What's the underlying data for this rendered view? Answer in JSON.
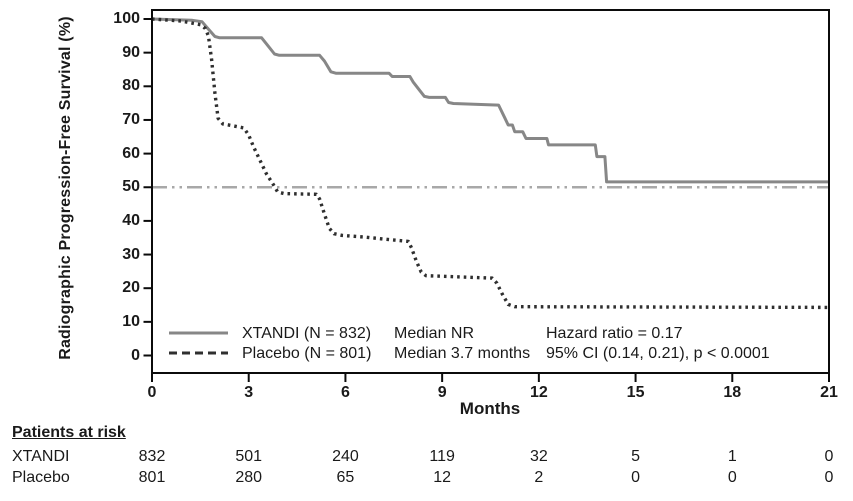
{
  "chart_data": {
    "type": "line",
    "subtype": "kaplan-meier-step",
    "title": "",
    "xlabel": "Months",
    "ylabel": "Radiographic Progression-Free Survival (%)",
    "xlim": [
      0,
      21
    ],
    "ylim": [
      0,
      100
    ],
    "xticks": [
      0,
      3,
      6,
      9,
      12,
      15,
      18,
      21
    ],
    "yticks": [
      0,
      10,
      20,
      30,
      40,
      50,
      60,
      70,
      80,
      90,
      100
    ],
    "grid": false,
    "reference_line": {
      "y": 50,
      "style": "dash-dot",
      "color": "#a8a8a8"
    },
    "series": [
      {
        "name": "XTANDI",
        "n": 832,
        "median": "NR",
        "color": "#878787",
        "line_style": "solid",
        "points": [
          [
            0,
            100
          ],
          [
            1.25,
            99.6
          ],
          [
            1.55,
            99.2
          ],
          [
            1.75,
            97.0
          ],
          [
            1.95,
            94.8
          ],
          [
            2.1,
            94.4
          ],
          [
            3.4,
            94.4
          ],
          [
            3.6,
            92.0
          ],
          [
            3.8,
            89.6
          ],
          [
            3.95,
            89.2
          ],
          [
            5.2,
            89.2
          ],
          [
            5.35,
            87.5
          ],
          [
            5.55,
            84.3
          ],
          [
            5.7,
            83.9
          ],
          [
            7.35,
            83.9
          ],
          [
            7.45,
            82.9
          ],
          [
            8.0,
            82.9
          ],
          [
            8.1,
            81.3
          ],
          [
            8.3,
            78.8
          ],
          [
            8.45,
            77.0
          ],
          [
            8.6,
            76.7
          ],
          [
            9.1,
            76.7
          ],
          [
            9.2,
            75.2
          ],
          [
            9.35,
            74.9
          ],
          [
            10.75,
            74.4
          ],
          [
            10.95,
            70.5
          ],
          [
            11.05,
            68.5
          ],
          [
            11.18,
            68.5
          ],
          [
            11.25,
            66.5
          ],
          [
            11.5,
            66.5
          ],
          [
            11.6,
            64.5
          ],
          [
            12.25,
            64.5
          ],
          [
            12.3,
            62.6
          ],
          [
            13.75,
            62.6
          ],
          [
            13.8,
            59.1
          ],
          [
            14.05,
            59.1
          ],
          [
            14.1,
            51.6
          ],
          [
            21,
            51.6
          ]
        ]
      },
      {
        "name": "Placebo",
        "n": 801,
        "median": "3.7 months",
        "color": "#2f2f2f",
        "line_style": "dotted",
        "points": [
          [
            0,
            100
          ],
          [
            0.9,
            99.4
          ],
          [
            1.5,
            98.3
          ],
          [
            1.65,
            97.2
          ],
          [
            1.75,
            95.0
          ],
          [
            1.85,
            88.0
          ],
          [
            1.95,
            78.0
          ],
          [
            2.05,
            70.5
          ],
          [
            2.2,
            68.8
          ],
          [
            2.5,
            68.3
          ],
          [
            2.85,
            67.6
          ],
          [
            3.0,
            65.5
          ],
          [
            3.15,
            62.0
          ],
          [
            3.35,
            58.0
          ],
          [
            3.55,
            54.0
          ],
          [
            3.75,
            51.0
          ],
          [
            3.9,
            48.6
          ],
          [
            4.1,
            48.1
          ],
          [
            5.1,
            47.9
          ],
          [
            5.2,
            46.5
          ],
          [
            5.35,
            42.0
          ],
          [
            5.5,
            37.8
          ],
          [
            5.65,
            36.2
          ],
          [
            5.9,
            35.7
          ],
          [
            6.6,
            35.2
          ],
          [
            7.2,
            34.6
          ],
          [
            7.95,
            33.9
          ],
          [
            8.05,
            32.0
          ],
          [
            8.2,
            28.0
          ],
          [
            8.35,
            24.8
          ],
          [
            8.5,
            23.7
          ],
          [
            10.55,
            23.0
          ],
          [
            10.7,
            21.5
          ],
          [
            10.85,
            18.5
          ],
          [
            11.05,
            15.2
          ],
          [
            11.25,
            14.5
          ],
          [
            21,
            14.3
          ]
        ]
      }
    ],
    "legend": {
      "position": "inside-bottom-left",
      "rows": [
        {
          "label": "XTANDI  (N = 832)",
          "median": "Median NR"
        },
        {
          "label": "Placebo  (N = 801)",
          "median": "Median 3.7 months"
        }
      ],
      "stats": [
        "Hazard ratio = 0.17",
        "95% CI (0.14, 0.21), p < 0.0001"
      ]
    }
  },
  "patients_at_risk": {
    "title": "Patients at risk",
    "months": [
      0,
      3,
      6,
      9,
      12,
      15,
      18,
      21
    ],
    "rows": [
      {
        "label": "XTANDI",
        "counts": [
          832,
          501,
          240,
          119,
          32,
          5,
          1,
          0
        ]
      },
      {
        "label": "Placebo",
        "counts": [
          801,
          280,
          65,
          12,
          2,
          0,
          0,
          0
        ]
      }
    ]
  },
  "colors": {
    "axis": "#0b0b0b",
    "xtandi": "#878787",
    "placebo": "#2f2f2f",
    "reference": "#a8a8a8",
    "background": "#ffffff"
  }
}
